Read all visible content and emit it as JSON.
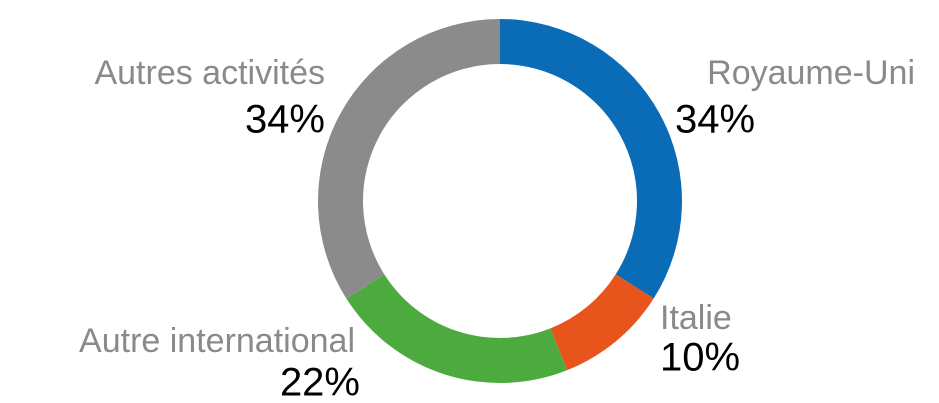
{
  "chart_data": {
    "type": "donut",
    "categories": [
      "Royaume-Uni",
      "Italie",
      "Autre international",
      "Autres activités"
    ],
    "values": [
      34,
      10,
      22,
      34
    ],
    "value_labels": [
      "34%",
      "10%",
      "22%",
      "34%"
    ],
    "colors": [
      "#0a6bb7",
      "#e8551c",
      "#4daa3f",
      "#8b8b8c"
    ]
  }
}
